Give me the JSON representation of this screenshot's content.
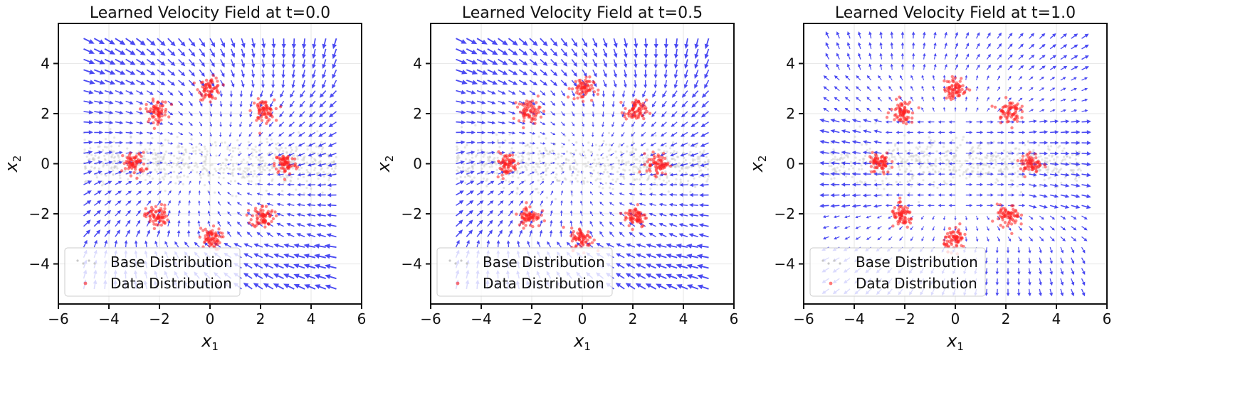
{
  "colors": {
    "arrow": "#2b2bf0",
    "data_points": "#ff2020",
    "grid": "#e6e6e6",
    "base_points": "#c8c8c8"
  },
  "chart_data": [
    {
      "type": "quiver",
      "title": "Learned Velocity Field at t=0.0",
      "time": 0.0,
      "xlabel": "x",
      "xlabel_sub": "1",
      "ylabel": "x",
      "ylabel_sub": "2",
      "xlim": [
        -6,
        6
      ],
      "ylim": [
        -5.6,
        5.6
      ],
      "xticks": [
        -6,
        -4,
        -2,
        0,
        2,
        4,
        6
      ],
      "yticks": [
        -4,
        -2,
        0,
        2,
        4
      ],
      "xtick_labels": [
        "−6",
        "−4",
        "−2",
        "0",
        "2",
        "4",
        "6"
      ],
      "ytick_labels": [
        "−4",
        "−2",
        "0",
        "2",
        "4"
      ],
      "grid": true,
      "field_range": [
        -5,
        5
      ],
      "field_steps": 25,
      "cluster_centers": [
        [
          0,
          3
        ],
        [
          2.1,
          2.1
        ],
        [
          3,
          0
        ],
        [
          2.1,
          -2.1
        ],
        [
          0,
          -3
        ],
        [
          -2.1,
          -2.1
        ],
        [
          -3,
          0
        ],
        [
          -2.1,
          2.1
        ]
      ],
      "legend": {
        "position": "lower-left",
        "entries": [
          "Base Distribution",
          "Data Distribution"
        ]
      }
    },
    {
      "type": "quiver",
      "title": "Learned Velocity Field at t=0.5",
      "time": 0.5,
      "xlabel": "x",
      "xlabel_sub": "1",
      "ylabel": "x",
      "ylabel_sub": "2",
      "xlim": [
        -6,
        6
      ],
      "ylim": [
        -5.6,
        5.6
      ],
      "xticks": [
        -6,
        -4,
        -2,
        0,
        2,
        4,
        6
      ],
      "yticks": [
        -4,
        -2,
        0,
        2,
        4
      ],
      "xtick_labels": [
        "−6",
        "−4",
        "−2",
        "0",
        "2",
        "4",
        "6"
      ],
      "ytick_labels": [
        "−4",
        "−2",
        "0",
        "2",
        "4"
      ],
      "grid": true,
      "field_range": [
        -5,
        5
      ],
      "field_steps": 25,
      "cluster_centers": [
        [
          0,
          3
        ],
        [
          2.1,
          2.1
        ],
        [
          3,
          0
        ],
        [
          2.1,
          -2.1
        ],
        [
          0,
          -3
        ],
        [
          -2.1,
          -2.1
        ],
        [
          -3,
          0
        ],
        [
          -2.1,
          2.1
        ]
      ],
      "legend": {
        "position": "lower-left",
        "entries": [
          "Base Distribution",
          "Data Distribution"
        ]
      }
    },
    {
      "type": "quiver",
      "title": "Learned Velocity Field at t=1.0",
      "time": 1.0,
      "xlabel": "x",
      "xlabel_sub": "1",
      "ylabel": "x",
      "ylabel_sub": "2",
      "xlim": [
        -6,
        6
      ],
      "ylim": [
        -5.6,
        5.6
      ],
      "xticks": [
        -6,
        -4,
        -2,
        0,
        2,
        4,
        6
      ],
      "yticks": [
        -4,
        -2,
        0,
        2,
        4
      ],
      "xtick_labels": [
        "−6",
        "−4",
        "−2",
        "0",
        "2",
        "4",
        "6"
      ],
      "ytick_labels": [
        "−4",
        "−2",
        "0",
        "2",
        "4"
      ],
      "grid": true,
      "field_range": [
        -5,
        5
      ],
      "field_steps": 25,
      "cluster_centers": [
        [
          0,
          3
        ],
        [
          2.1,
          2.1
        ],
        [
          3,
          0
        ],
        [
          2.1,
          -2.1
        ],
        [
          0,
          -3
        ],
        [
          -2.1,
          -2.1
        ],
        [
          -3,
          0
        ],
        [
          -2.1,
          2.1
        ]
      ],
      "legend": {
        "position": "lower-left",
        "entries": [
          "Base Distribution",
          "Data Distribution"
        ]
      }
    }
  ]
}
